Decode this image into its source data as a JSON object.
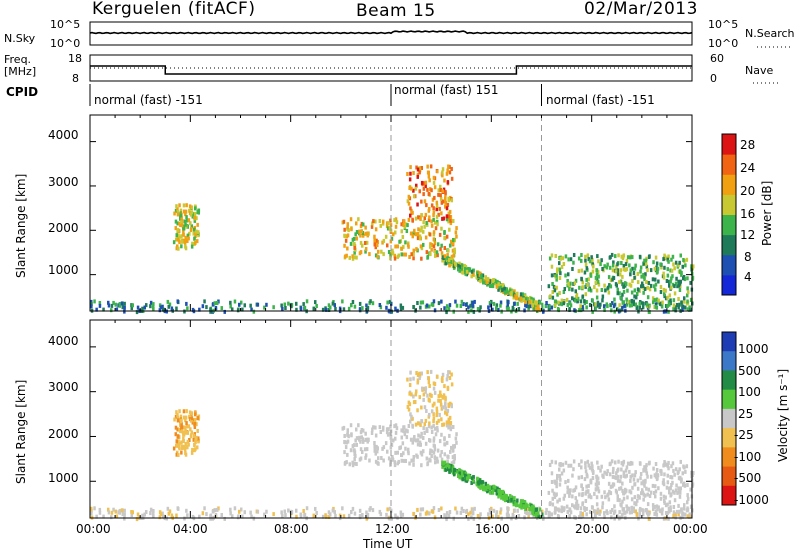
{
  "header": {
    "station": "Kerguelen (fitACF)",
    "beam": "Beam 15",
    "date": "02/Mar/2013"
  },
  "noise_panel": {
    "left_label": "N.Sky",
    "left_ticks": [
      "10^5",
      "10^0"
    ],
    "right_label": "N.Search",
    "right_ticks": [
      "10^5",
      "10^0"
    ]
  },
  "freq_panel": {
    "left_label_1": "Freq.",
    "left_label_2": "[MHz]",
    "left_ticks": [
      "18",
      "8"
    ],
    "right_label": "Nave",
    "right_ticks": [
      "60",
      "0"
    ]
  },
  "cpid_panel": {
    "label": "CPID",
    "segments": [
      {
        "text": "normal (fast) -151",
        "start_hour": 0
      },
      {
        "text": "normal (fast) 151",
        "start_hour": 12
      },
      {
        "text": "normal (fast) -151",
        "start_hour": 18
      }
    ]
  },
  "x_axis": {
    "label": "Time UT",
    "ticks": [
      "00:00",
      "04:00",
      "08:00",
      "12:00",
      "16:00",
      "20:00",
      "00:00"
    ]
  },
  "power_panel": {
    "ylabel": "Slant Range [km]",
    "yticks": [
      "1000",
      "2000",
      "3000",
      "4000"
    ],
    "colorbar_label": "Power [dB]",
    "colorbar_ticks": [
      "4",
      "8",
      "12",
      "16",
      "20",
      "24",
      "28"
    ],
    "colors": [
      "#1428d8",
      "#1e50b4",
      "#1f7a5a",
      "#3cb44b",
      "#c8c832",
      "#f0a010",
      "#f06414",
      "#dc1414"
    ]
  },
  "velocity_panel": {
    "ylabel": "Slant Range [km]",
    "yticks": [
      "1000",
      "2000",
      "3000",
      "4000"
    ],
    "colorbar_label": "Velocity [m s⁻¹]",
    "colorbar_ticks": [
      "1000",
      "500",
      "100",
      "25",
      "-25",
      "-100",
      "-500",
      "-1000"
    ],
    "colors": [
      "#1e3cb4",
      "#3c78c8",
      "#228b46",
      "#55c83c",
      "#c8c8c8",
      "#f0c050",
      "#f08c1e",
      "#e65a14",
      "#dc1414"
    ]
  },
  "chart_data": {
    "type": "heatmap",
    "x_range_hours": [
      0,
      24
    ],
    "y_range_km": [
      180,
      4600
    ],
    "power_range_db": [
      0,
      32
    ],
    "velocity_range_ms": [
      -1000,
      1000
    ],
    "dashed_time_markers_hours": [
      12,
      18
    ],
    "cpid_change_hours": [
      12,
      18
    ],
    "frequency_steps": [
      {
        "start_hour": 0,
        "end_hour": 3,
        "level": "high"
      },
      {
        "start_hour": 3,
        "end_hour": 17,
        "level": "low"
      },
      {
        "start_hour": 17,
        "end_hour": 24,
        "level": "high"
      }
    ],
    "echo_regions": [
      {
        "name": "near-range band",
        "t0": 0,
        "t1": 24,
        "r0": 200,
        "r1": 450,
        "power_db": 10,
        "velocity_ms": -60
      },
      {
        "name": "early plume",
        "t0": 3.3,
        "t1": 4.3,
        "r0": 1600,
        "r1": 2650,
        "power_db": 18,
        "velocity_ms": -300
      },
      {
        "name": "midnight-noon arc",
        "t0": 10,
        "t1": 14.6,
        "r0": 1400,
        "r1": 2300,
        "power_db": 20,
        "velocity_ms": 0
      },
      {
        "name": "noon spike",
        "t0": 12.6,
        "t1": 14.4,
        "r0": 2300,
        "r1": 3500,
        "power_db": 24,
        "velocity_ms": -150
      },
      {
        "name": "descending trail",
        "t0": 14,
        "t1": 18,
        "r0": 300,
        "r1": 1400,
        "power_db": 16,
        "velocity_ms": 300
      },
      {
        "name": "evening cluster",
        "t0": 18.2,
        "t1": 24,
        "r0": 300,
        "r1": 1500,
        "power_db": 14,
        "velocity_ms": 10
      }
    ]
  }
}
